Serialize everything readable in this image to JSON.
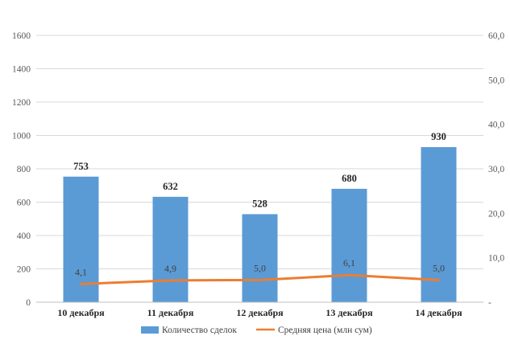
{
  "chart_data": {
    "type": "bar",
    "categories": [
      "10 декабря",
      "11 декабря",
      "12 декабря",
      "13 декабря",
      "14 декабря"
    ],
    "series": [
      {
        "name": "Количество сделок",
        "kind": "bar",
        "axis": "left",
        "color": "#5B9BD5",
        "values": [
          753,
          632,
          528,
          680,
          930
        ],
        "labels": [
          "753",
          "632",
          "528",
          "680",
          "930"
        ]
      },
      {
        "name": "Средняя цена (млн сум)",
        "kind": "line",
        "axis": "right",
        "color": "#ED7D31",
        "values": [
          4.1,
          4.9,
          5.0,
          6.1,
          5.0
        ],
        "labels": [
          "4,1",
          "4,9",
          "5,0",
          "6,1",
          "5,0"
        ]
      }
    ],
    "y_left": {
      "min": 0,
      "max": 1600,
      "ticks": [
        0,
        200,
        400,
        600,
        800,
        1000,
        1200,
        1400,
        1600
      ],
      "tick_labels": [
        "0",
        "200",
        "400",
        "600",
        "800",
        "1000",
        "1200",
        "1400",
        "1600"
      ]
    },
    "y_right": {
      "min": 0,
      "max": 60,
      "ticks": [
        0,
        10,
        20,
        30,
        40,
        50,
        60
      ],
      "tick_labels": [
        "-",
        "10,0",
        "20,0",
        "30,0",
        "40,0",
        "50,0",
        "60,0"
      ]
    },
    "grid": true,
    "legend_position": "bottom"
  }
}
